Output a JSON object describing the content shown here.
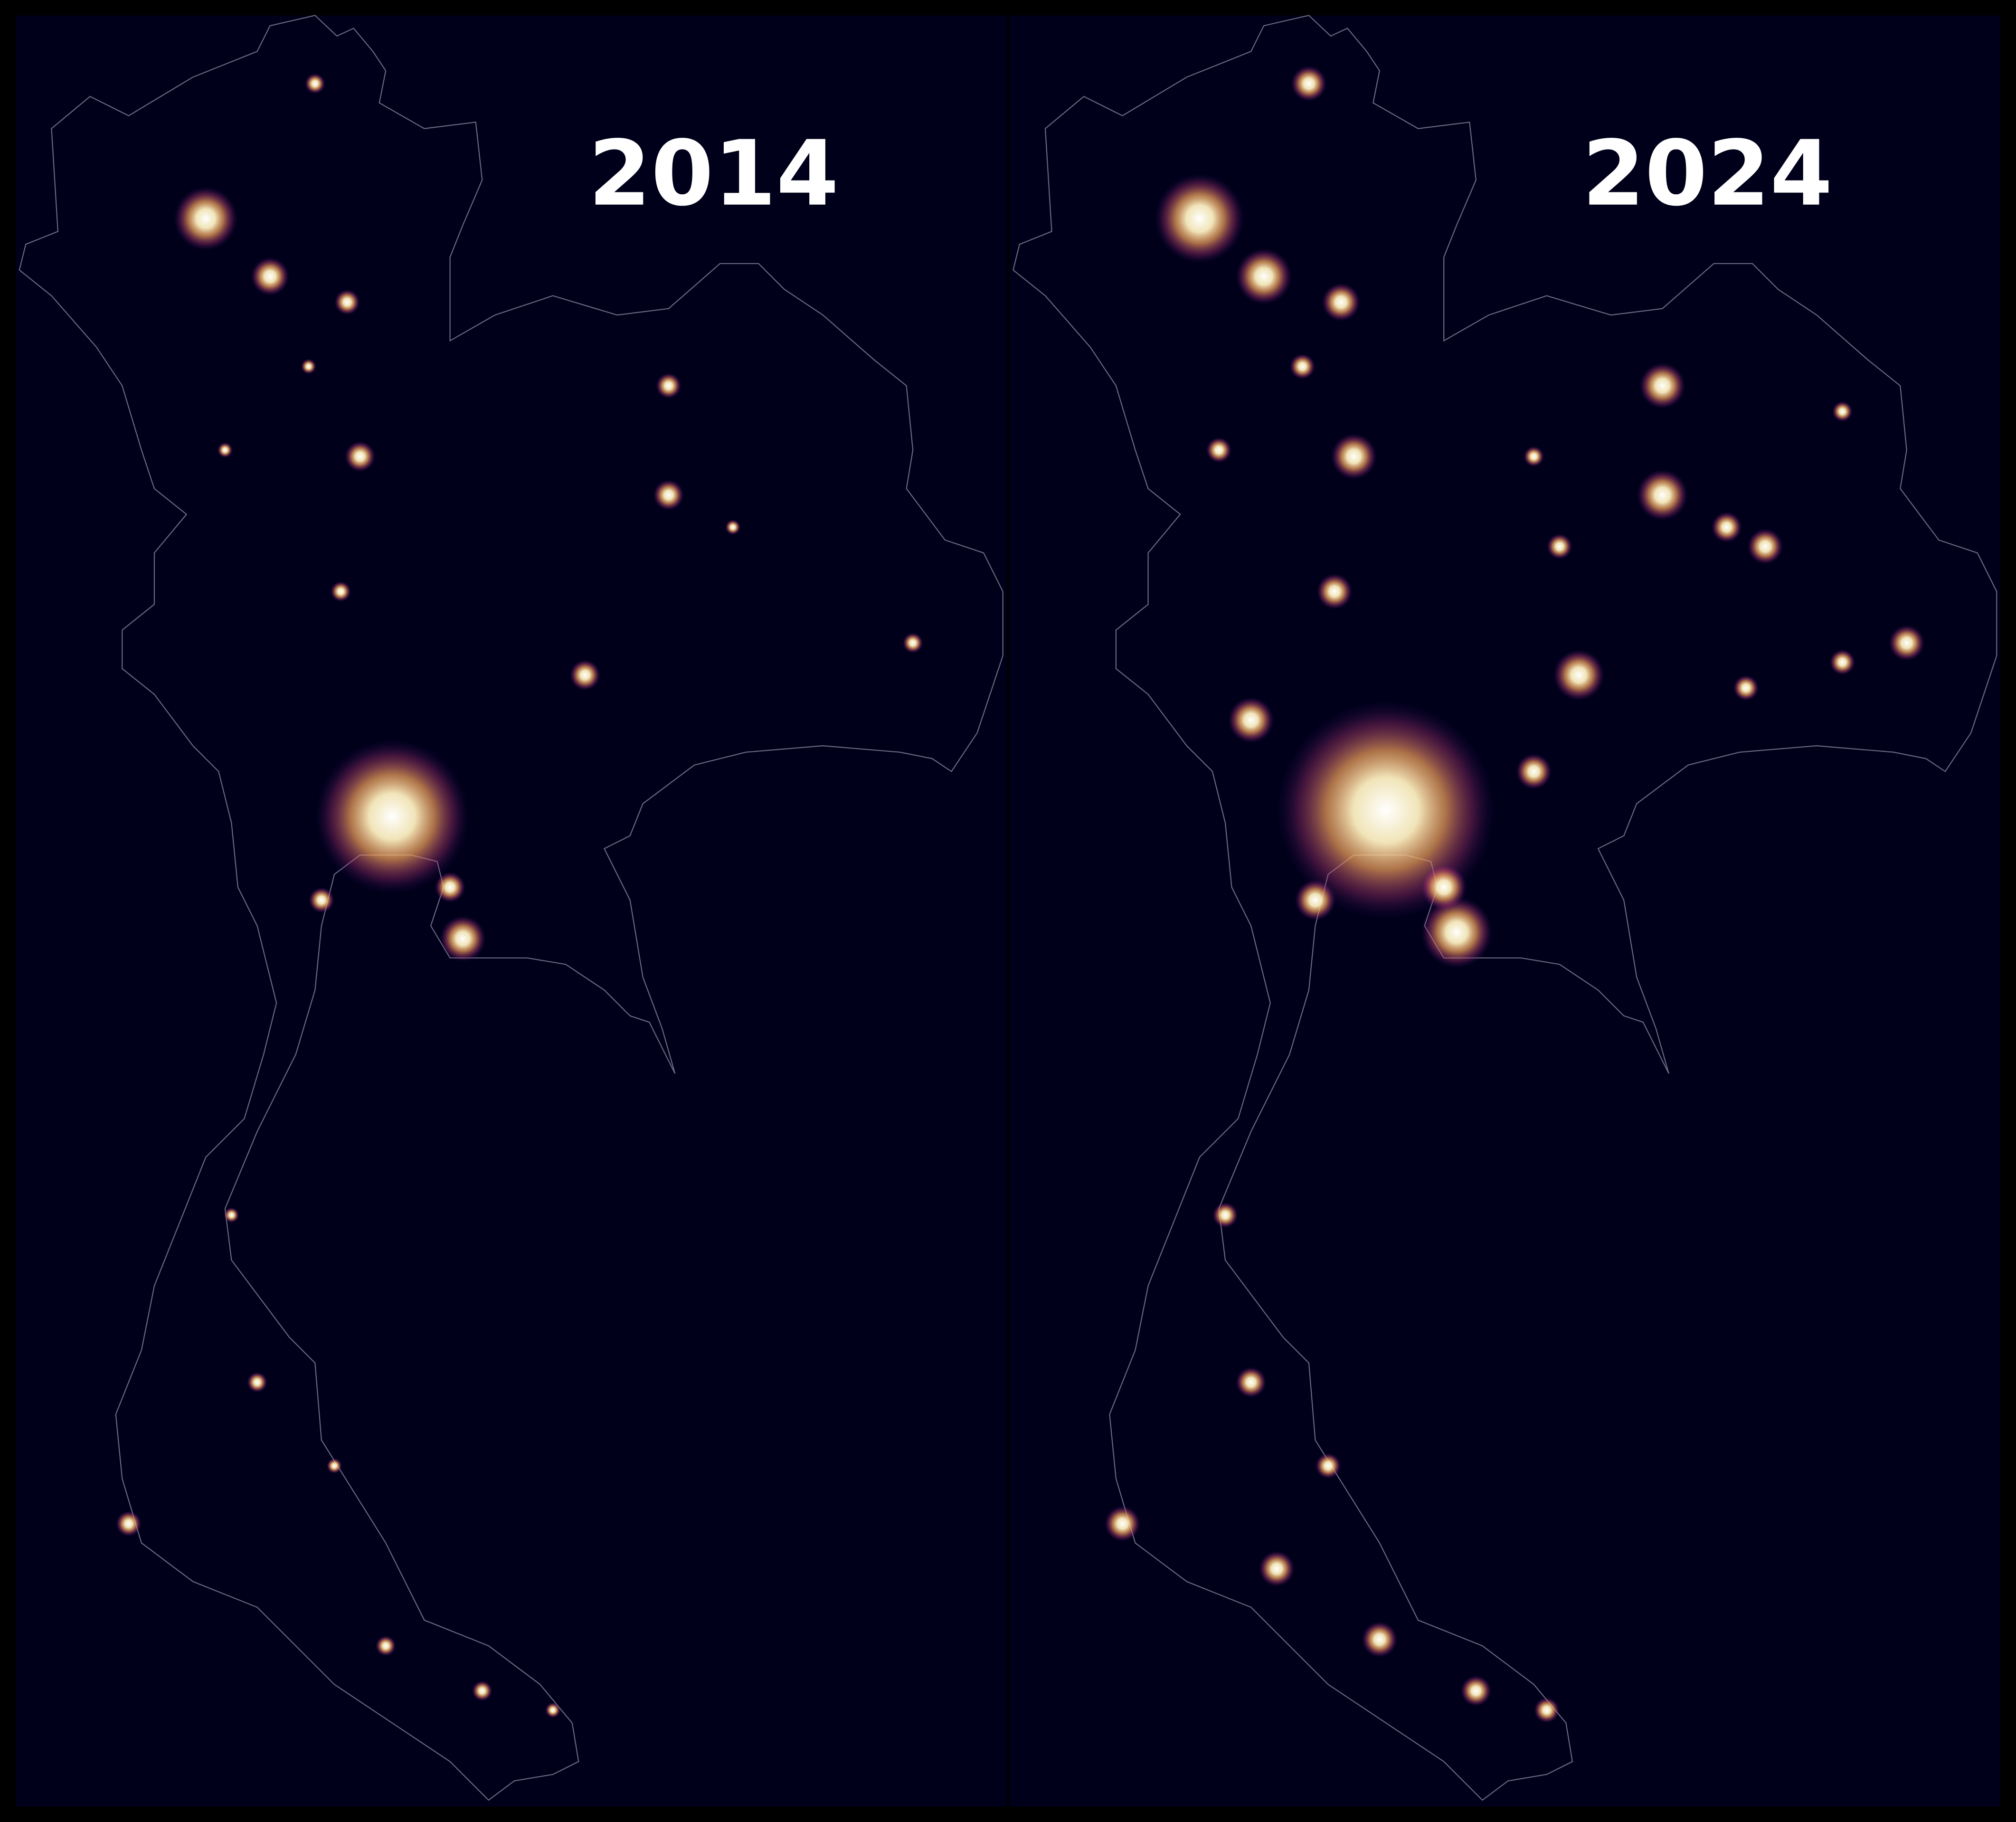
{
  "panels": [
    {
      "title": "2014"
    },
    {
      "title": "2024"
    }
  ]
}
